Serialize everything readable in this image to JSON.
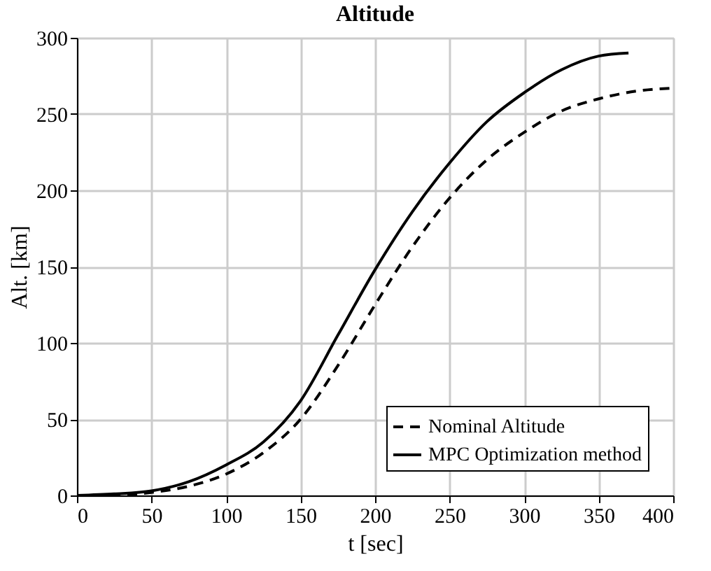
{
  "chart_data": {
    "type": "line",
    "title": "Altitude",
    "xlabel": "t [sec]",
    "ylabel": "Alt. [km]",
    "xlim": [
      0,
      400
    ],
    "xticks": [
      0,
      50,
      100,
      150,
      200,
      250,
      300,
      350,
      400
    ],
    "ylim": [
      0,
      300
    ],
    "yticks": [
      0,
      50,
      100,
      150,
      200,
      250,
      300
    ],
    "grid": true,
    "legend": "bottom right",
    "marker": "none",
    "series": [
      {
        "name": "Nominal Altitude",
        "color": "#000000",
        "line_style": "dashed",
        "x": [
          0,
          25,
          50,
          75,
          100,
          125,
          150,
          175,
          200,
          225,
          250,
          275,
          300,
          325,
          350,
          375,
          400
        ],
        "values": [
          0,
          0,
          2,
          6,
          14,
          28,
          50,
          85,
          125,
          163,
          195,
          220,
          238,
          252,
          260,
          265,
          267
        ]
      },
      {
        "name": "MPC Optimization method",
        "color": "#000000",
        "line_style": "solid",
        "x": [
          0,
          25,
          50,
          75,
          100,
          125,
          150,
          175,
          200,
          225,
          250,
          275,
          300,
          325,
          350,
          370
        ],
        "values": [
          0,
          1,
          3,
          9,
          20,
          35,
          62,
          105,
          148,
          186,
          218,
          245,
          264,
          279,
          288,
          290
        ]
      }
    ]
  }
}
